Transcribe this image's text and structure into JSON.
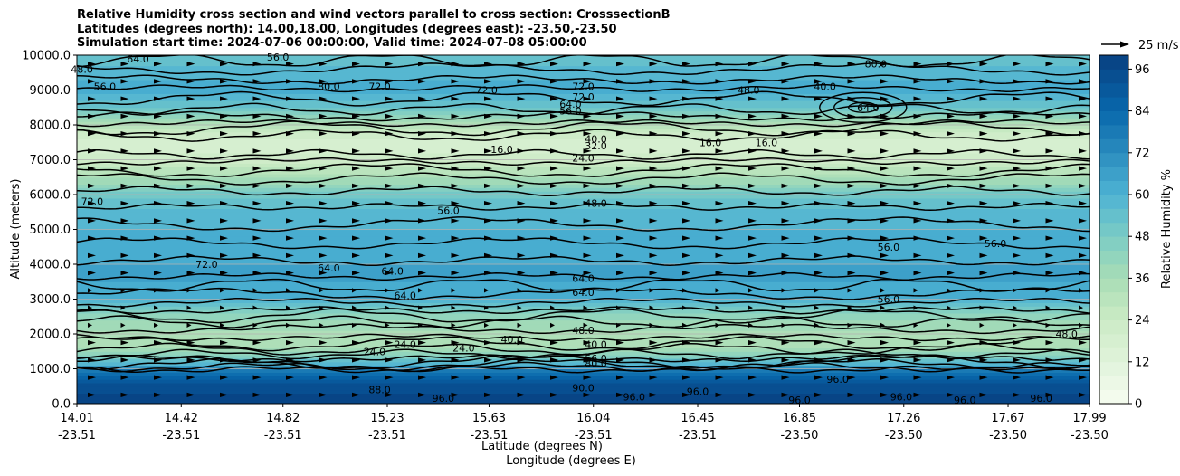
{
  "chart_data": {
    "type": "contour",
    "title_lines": [
      "Relative Humidity cross section and wind vectors parallel to cross section: CrosssectionB",
      "Latitudes (degrees north): 14.00,18.00, Longitudes (degrees east): -23.50,-23.50",
      "Simulation start time: 2024-07-06 00:00:00, Valid time: 2024-07-08 05:00:00"
    ],
    "ylabel": "Altitude (meters)",
    "xlabel_lines": [
      "Latitude (degrees N)",
      "Longitude (degrees E)"
    ],
    "ylim": [
      0,
      10000
    ],
    "yticks": [
      "0.0",
      "1000.0",
      "2000.0",
      "3000.0",
      "4000.0",
      "5000.0",
      "6000.0",
      "7000.0",
      "8000.0",
      "9000.0",
      "10000.0"
    ],
    "xticks": [
      {
        "lat": "14.01",
        "lon": "-23.51"
      },
      {
        "lat": "14.42",
        "lon": "-23.51"
      },
      {
        "lat": "14.82",
        "lon": "-23.51"
      },
      {
        "lat": "15.23",
        "lon": "-23.51"
      },
      {
        "lat": "15.63",
        "lon": "-23.51"
      },
      {
        "lat": "16.04",
        "lon": "-23.51"
      },
      {
        "lat": "16.45",
        "lon": "-23.51"
      },
      {
        "lat": "16.85",
        "lon": "-23.50"
      },
      {
        "lat": "17.26",
        "lon": "-23.50"
      },
      {
        "lat": "17.67",
        "lon": "-23.50"
      },
      {
        "lat": "17.99",
        "lon": "-23.50"
      }
    ],
    "grid": "horizontal",
    "colorbar": {
      "label": "Relative Humidity %",
      "ticks": [
        "0",
        "12",
        "24",
        "36",
        "48",
        "60",
        "72",
        "84",
        "96"
      ],
      "min": 0,
      "max": 100,
      "step": 4,
      "colormap": "GnBu"
    },
    "quiver_key": "25 m/s",
    "humidity_profile": [
      {
        "alt": 0,
        "rh": 96
      },
      {
        "alt": 300,
        "rh": 96
      },
      {
        "alt": 600,
        "rh": 92
      },
      {
        "alt": 900,
        "rh": 82
      },
      {
        "alt": 1200,
        "rh": 55
      },
      {
        "alt": 1600,
        "rh": 36
      },
      {
        "alt": 2000,
        "rh": 34
      },
      {
        "alt": 2500,
        "rh": 42
      },
      {
        "alt": 3000,
        "rh": 60
      },
      {
        "alt": 3500,
        "rh": 64
      },
      {
        "alt": 4000,
        "rh": 64
      },
      {
        "alt": 4500,
        "rh": 62
      },
      {
        "alt": 5000,
        "rh": 60
      },
      {
        "alt": 5500,
        "rh": 58
      },
      {
        "alt": 6000,
        "rh": 50
      },
      {
        "alt": 6500,
        "rh": 35
      },
      {
        "alt": 7000,
        "rh": 22
      },
      {
        "alt": 7500,
        "rh": 16
      },
      {
        "alt": 8000,
        "rh": 30
      },
      {
        "alt": 8500,
        "rh": 52
      },
      {
        "alt": 9000,
        "rh": 62
      },
      {
        "alt": 9500,
        "rh": 58
      },
      {
        "alt": 10000,
        "rh": 52
      }
    ],
    "contour_labels": [
      {
        "text": "48.0",
        "lat": 14.03,
        "alt": 9600
      },
      {
        "text": "56.0",
        "lat": 14.12,
        "alt": 9100
      },
      {
        "text": "64.0",
        "lat": 14.25,
        "alt": 9900
      },
      {
        "text": "56.0",
        "lat": 14.8,
        "alt": 9950
      },
      {
        "text": "80.0",
        "lat": 15.0,
        "alt": 9100
      },
      {
        "text": "72.0",
        "lat": 15.2,
        "alt": 9100
      },
      {
        "text": "72.0",
        "lat": 15.62,
        "alt": 9000
      },
      {
        "text": "72.0",
        "lat": 16.0,
        "alt": 9100
      },
      {
        "text": "72.0",
        "lat": 16.0,
        "alt": 8800
      },
      {
        "text": "64.0",
        "lat": 15.95,
        "alt": 8600
      },
      {
        "text": "56.0",
        "lat": 15.95,
        "alt": 8400
      },
      {
        "text": "40.0",
        "lat": 16.05,
        "alt": 7600
      },
      {
        "text": "32.0",
        "lat": 16.05,
        "alt": 7400
      },
      {
        "text": "24.0",
        "lat": 16.0,
        "alt": 7050
      },
      {
        "text": "16.0",
        "lat": 15.68,
        "alt": 7300
      },
      {
        "text": "16.0",
        "lat": 16.5,
        "alt": 7500
      },
      {
        "text": "16.0",
        "lat": 16.72,
        "alt": 7500
      },
      {
        "text": "48.0",
        "lat": 16.65,
        "alt": 9000
      },
      {
        "text": "40.0",
        "lat": 16.95,
        "alt": 9100
      },
      {
        "text": "64.0",
        "lat": 17.12,
        "alt": 8500
      },
      {
        "text": "80.0",
        "lat": 17.15,
        "alt": 9750
      },
      {
        "text": "72.0",
        "lat": 14.07,
        "alt": 5800
      },
      {
        "text": "56.0",
        "lat": 15.47,
        "alt": 5550
      },
      {
        "text": "48.0",
        "lat": 16.05,
        "alt": 5750
      },
      {
        "text": "72.0",
        "lat": 14.52,
        "alt": 4000
      },
      {
        "text": "64.0",
        "lat": 15.0,
        "alt": 3900
      },
      {
        "text": "64.0",
        "lat": 15.25,
        "alt": 3800
      },
      {
        "text": "64.0",
        "lat": 15.3,
        "alt": 3100
      },
      {
        "text": "64.0",
        "lat": 16.0,
        "alt": 3600
      },
      {
        "text": "64.0",
        "lat": 16.0,
        "alt": 3200
      },
      {
        "text": "56.0",
        "lat": 17.2,
        "alt": 4500
      },
      {
        "text": "56.0",
        "lat": 17.62,
        "alt": 4600
      },
      {
        "text": "56.0",
        "lat": 17.2,
        "alt": 3000
      },
      {
        "text": "48.0",
        "lat": 16.0,
        "alt": 2100
      },
      {
        "text": "40.0",
        "lat": 15.72,
        "alt": 1850
      },
      {
        "text": "40.0",
        "lat": 16.05,
        "alt": 1700
      },
      {
        "text": "48.0",
        "lat": 17.9,
        "alt": 2000
      },
      {
        "text": "24.0",
        "lat": 15.3,
        "alt": 1700
      },
      {
        "text": "24.0",
        "lat": 15.53,
        "alt": 1600
      },
      {
        "text": "24.0",
        "lat": 15.18,
        "alt": 1500
      },
      {
        "text": "88.0",
        "lat": 15.2,
        "alt": 400
      },
      {
        "text": "96.0",
        "lat": 16.2,
        "alt": 200
      },
      {
        "text": "96.0",
        "lat": 16.45,
        "alt": 350
      },
      {
        "text": "96.0",
        "lat": 16.85,
        "alt": 100
      },
      {
        "text": "96.0",
        "lat": 17.0,
        "alt": 700
      },
      {
        "text": "96.0",
        "lat": 17.25,
        "alt": 200
      },
      {
        "text": "96.0",
        "lat": 17.5,
        "alt": 100
      },
      {
        "text": "96.0",
        "lat": 17.8,
        "alt": 150
      },
      {
        "text": "96.0",
        "lat": 15.45,
        "alt": 150
      },
      {
        "text": "56.0",
        "lat": 16.05,
        "alt": 1300
      },
      {
        "text": "80.0",
        "lat": 16.05,
        "alt": 1150
      },
      {
        "text": "90.0",
        "lat": 16.0,
        "alt": 450
      }
    ]
  }
}
